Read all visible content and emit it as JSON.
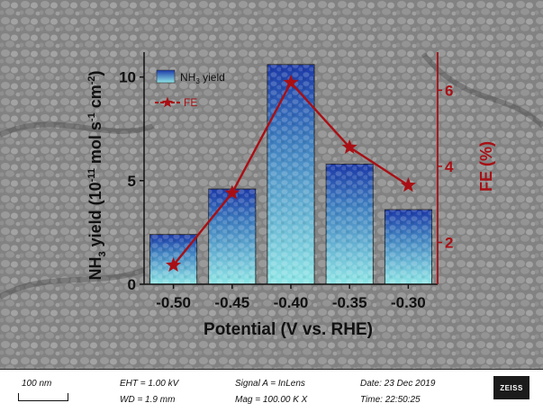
{
  "chart_data": {
    "type": "bar",
    "xlabel": "Potential (V vs. RHE)",
    "ylabel_left": "NH3 yield (10-11 mol s-1 cm-2)",
    "ylabel_right": "FE (%)",
    "categories": [
      "-0.50",
      "-0.45",
      "-0.40",
      "-0.35",
      "-0.30"
    ],
    "yticks_left": [
      "0",
      "5",
      "10"
    ],
    "yticks_right": [
      "2",
      "4",
      "6"
    ],
    "ylim_left": [
      0,
      11.2
    ],
    "ylim_right": [
      0.9,
      7.0
    ],
    "series": [
      {
        "name": "NH3 yield",
        "kind": "bar",
        "axis": "left",
        "values": [
          2.4,
          4.6,
          10.6,
          5.8,
          3.6
        ]
      },
      {
        "name": "FE",
        "kind": "line-star",
        "axis": "right",
        "values": [
          1.4,
          3.3,
          6.2,
          4.5,
          3.5
        ]
      }
    ],
    "legend": {
      "position": "top-left",
      "items": [
        "NH3 yield",
        "FE"
      ]
    },
    "colors": {
      "bar_top": "#1c3aa8",
      "bar_bottom": "#8fe6e6",
      "fe_line": "#a80f14",
      "axis_right": "#a80f14"
    }
  },
  "sem_info": {
    "scale_label": "100 nm",
    "eht": "EHT =  1.00 kV",
    "wd": "WD =  1.9 mm",
    "signal": "Signal A = InLens",
    "mag": "Mag = 100.00 K X",
    "date": "Date: 23 Dec 2019",
    "time": "Time: 22:50:25",
    "brand": "ZEISS"
  }
}
